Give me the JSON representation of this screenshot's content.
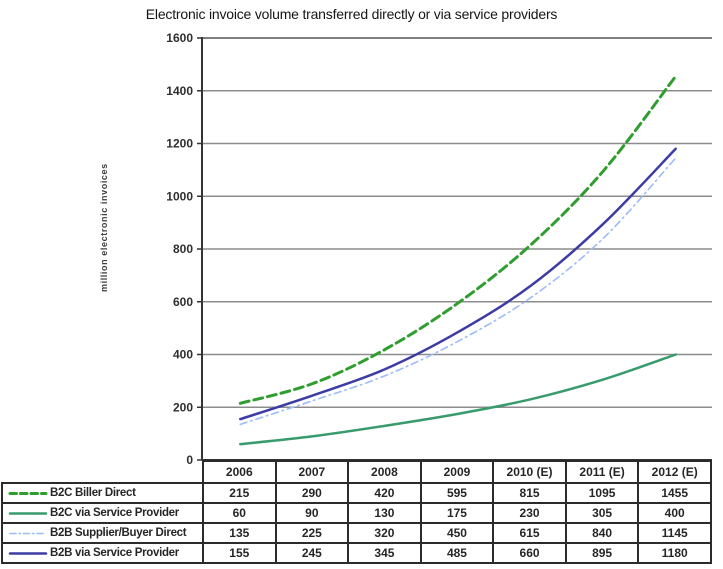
{
  "chart_data": {
    "type": "line",
    "title": "Electronic invoice volume transferred directly or via service providers",
    "ylabel": "million electronic invoices",
    "xlabel": "",
    "ylim": [
      0,
      1600
    ],
    "ytick_interval": 200,
    "grid": true,
    "legend_position": "table-left",
    "categories": [
      "2006",
      "2007",
      "2008",
      "2009",
      "2010 (E)",
      "2011 (E)",
      "2012 (E)"
    ],
    "series": [
      {
        "name": "B2C Biller Direct",
        "style": "dashed",
        "color": "#2f9e2f",
        "values": [
          215,
          290,
          420,
          595,
          815,
          1095,
          1455
        ]
      },
      {
        "name": "B2C via Service Provider",
        "style": "solid",
        "color": "#379b6b",
        "values": [
          60,
          90,
          130,
          175,
          230,
          305,
          400
        ]
      },
      {
        "name": "B2B Supplier/Buyer Direct",
        "style": "dashdot",
        "color": "#9cbcf8",
        "values": [
          135,
          225,
          320,
          450,
          615,
          840,
          1145
        ]
      },
      {
        "name": "B2B via Service Provider",
        "style": "solid",
        "color": "#3c3ca4",
        "values": [
          155,
          245,
          345,
          485,
          660,
          895,
          1180
        ]
      }
    ],
    "colors": {
      "gridline": "#8c8c8c",
      "axis": "#333333",
      "table_border": "#2b2b2b"
    }
  }
}
